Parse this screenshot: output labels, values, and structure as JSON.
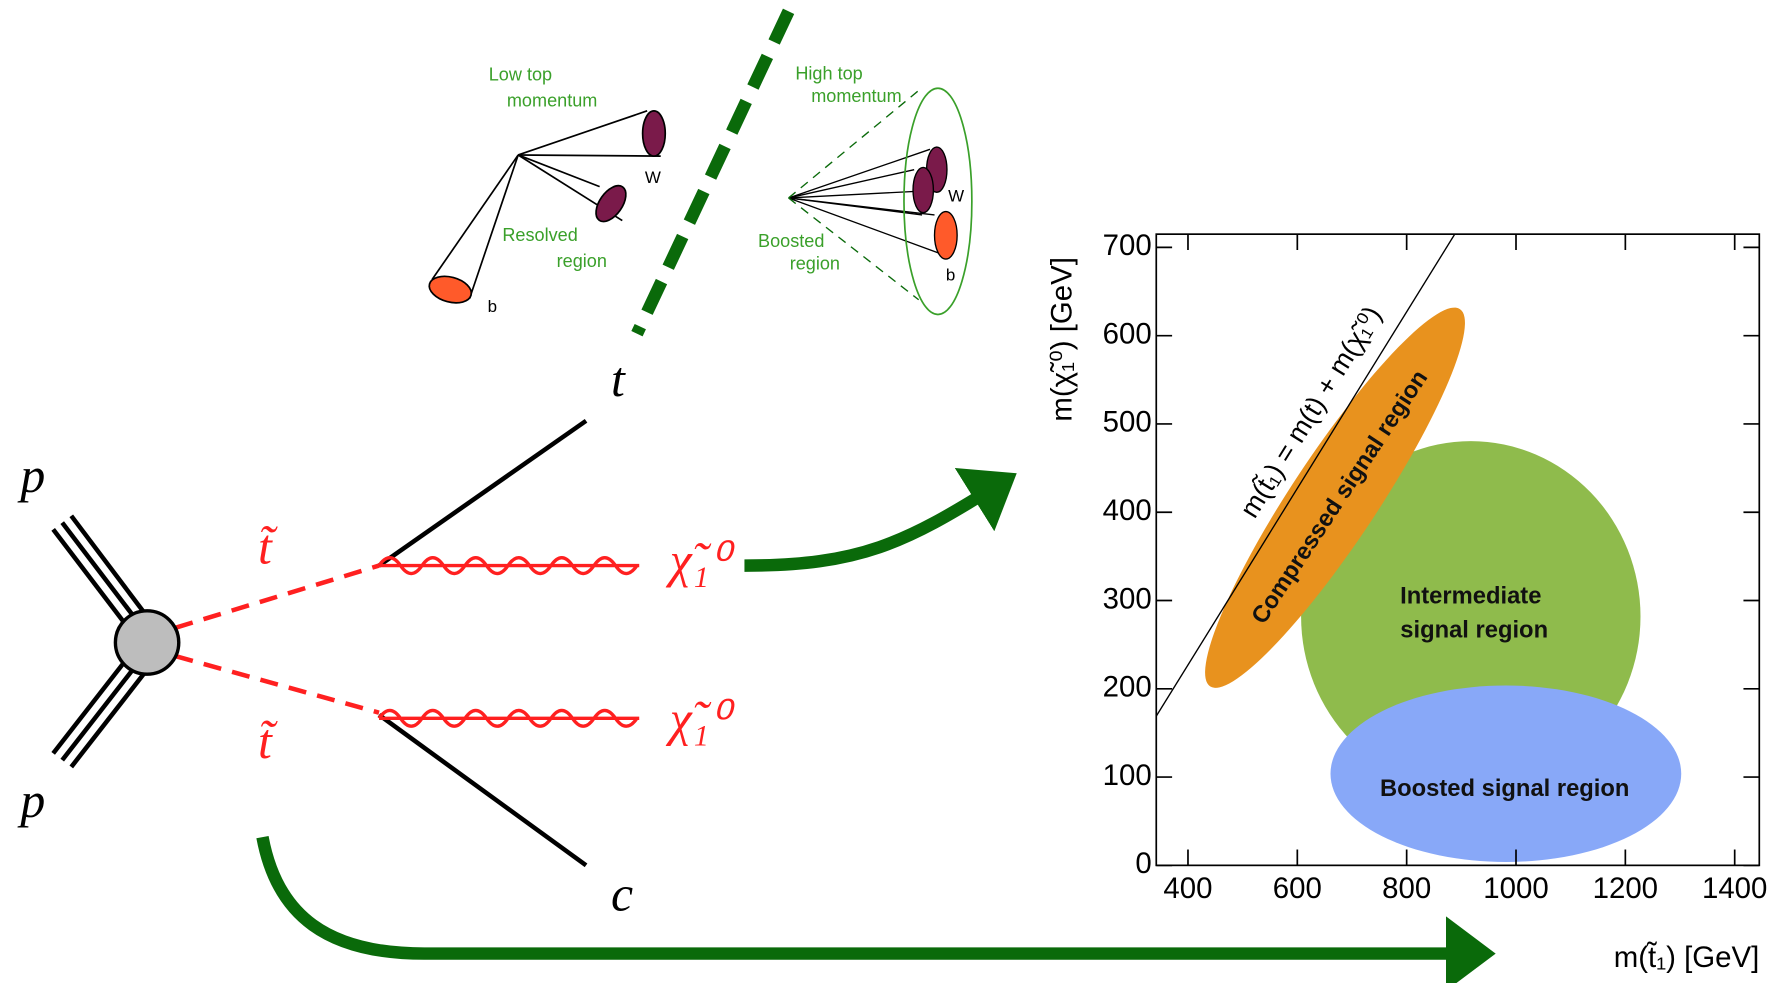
{
  "feynman": {
    "incoming": [
      "p",
      "p"
    ],
    "stops": [
      "t̃",
      "t̃"
    ],
    "neutralinos": [
      "χ̃₁⁰",
      "χ̃₁⁰"
    ],
    "top": "t",
    "charm": "c"
  },
  "insets": {
    "resolved": {
      "caption": [
        "Low top",
        "momentum"
      ],
      "label": [
        "Resolved",
        "region"
      ],
      "w": "W",
      "b": "b"
    },
    "boosted": {
      "caption": [
        "High top",
        "momentum"
      ],
      "label": [
        "Boosted",
        "region"
      ],
      "w": "W",
      "b": "b"
    }
  },
  "chart_data": {
    "type": "region-map",
    "x_label": "m(t̃₁) [GeV]",
    "y_label": "m(χ̃₁⁰) [GeV]",
    "xlim": [
      342,
      1445
    ],
    "ylim": [
      0,
      715
    ],
    "xticks": [
      400,
      600,
      800,
      1000,
      1200,
      1400
    ],
    "yticks": [
      0,
      100,
      200,
      300,
      400,
      500,
      600,
      700
    ],
    "diagonal": {
      "label": "m(t̃₁) = m(t) + m(χ̃₁⁰)",
      "x": [
        342,
        888
      ],
      "y": [
        169,
        715
      ]
    },
    "regions": [
      {
        "name": [
          "Compressed signal region"
        ],
        "color": "#e8921e"
      },
      {
        "name": [
          "Intermediate",
          "signal region"
        ],
        "color": "#8fbb4c"
      },
      {
        "name": [
          "Boosted signal region"
        ],
        "color": "#88a8f8"
      }
    ]
  }
}
